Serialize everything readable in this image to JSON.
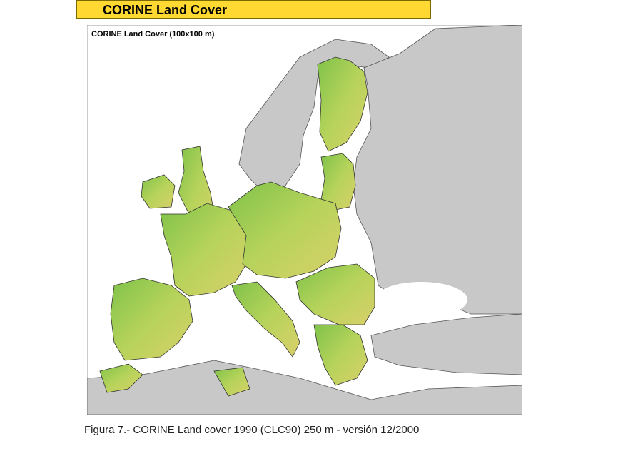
{
  "header": {
    "title": "CORINE Land Cover"
  },
  "map": {
    "label": "CORINE Land Cover (100x100 m)"
  },
  "caption": "Figura 7.- CORINE Land cover 1990 (CLC90) 250 m - versión 12/2000"
}
